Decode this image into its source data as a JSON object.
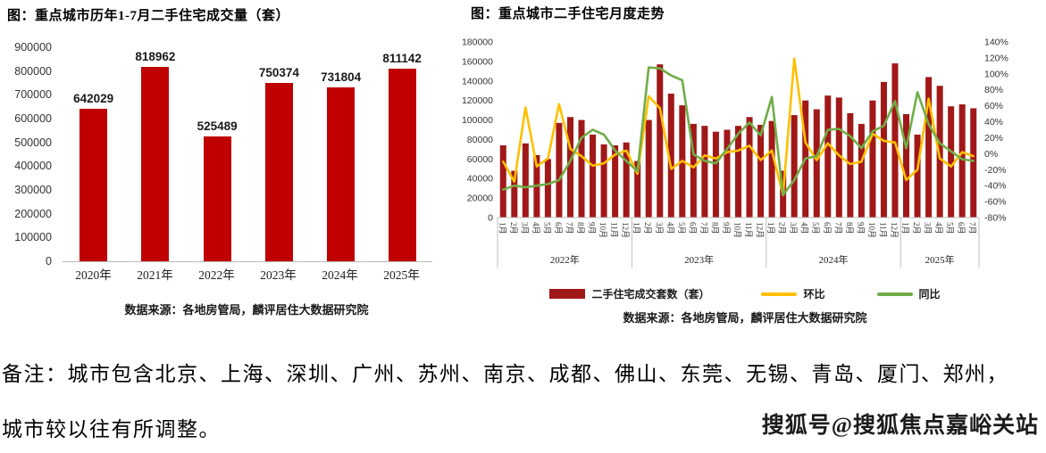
{
  "note": {
    "line1": "备注：城市包含北京、上海、深圳、广州、苏州、南京、成都、佛山、东莞、无锡、青岛、厦门、郑州，",
    "line2": "城市较以往有所调整。"
  },
  "watermark": "搜狐号@搜狐焦点嘉峪关站",
  "chart_data": [
    {
      "type": "bar",
      "title": "图：重点城市历年1-7月二手住宅成交量（套）",
      "categories": [
        "2020年",
        "2021年",
        "2022年",
        "2023年",
        "2024年",
        "2025年"
      ],
      "values": [
        642029,
        818962,
        525489,
        750374,
        731804,
        811142
      ],
      "ylim": [
        0,
        900000
      ],
      "ytick_step": 100000,
      "bar_color": "#C00000",
      "data_labels": true,
      "grid": false,
      "source": "数据来源：各地房管局，麟评居住大数据研究院"
    },
    {
      "type": "combo-bar-line",
      "title": "图：重点城市二手住宅月度走势",
      "year_groups": [
        {
          "label": "2022年",
          "months": 12
        },
        {
          "label": "2023年",
          "months": 12
        },
        {
          "label": "2024年",
          "months": 12
        },
        {
          "label": "2025年",
          "months": 7
        }
      ],
      "month_labels": [
        "1月",
        "2月",
        "3月",
        "4月",
        "5月",
        "6月",
        "7月",
        "8月",
        "9月",
        "10月",
        "11月",
        "12月",
        "1月",
        "2月",
        "3月",
        "4月",
        "5月",
        "6月",
        "7月",
        "8月",
        "9月",
        "10月",
        "11月",
        "12月",
        "1月",
        "2月",
        "3月",
        "4月",
        "5月",
        "6月",
        "7月",
        "8月",
        "9月",
        "10月",
        "11月",
        "12月",
        "1月",
        "2月",
        "3月",
        "4月",
        "5月",
        "6月",
        "7月"
      ],
      "left_axis": {
        "min": 0,
        "max": 180000,
        "step": 20000
      },
      "right_axis": {
        "min": -80,
        "max": 140,
        "step": 20,
        "suffix": "%"
      },
      "grid": false,
      "legend_position": "bottom",
      "source": "数据来源：各地房管局，麟评居住大数据研究院",
      "series": [
        {
          "name": "二手住宅成交套数（套）",
          "type": "bar",
          "axis": "left",
          "color": "#A11818",
          "values": [
            74000,
            48000,
            76000,
            64000,
            60000,
            97000,
            103000,
            100000,
            85000,
            75000,
            74000,
            77000,
            58000,
            100000,
            157000,
            127000,
            115000,
            96000,
            94000,
            88000,
            90000,
            94000,
            103000,
            95000,
            99000,
            48000,
            105000,
            120000,
            111000,
            125000,
            123000,
            107000,
            96000,
            120000,
            139000,
            158000,
            106000,
            85000,
            144000,
            135000,
            114000,
            116000,
            112000
          ]
        },
        {
          "name": "环比",
          "type": "line",
          "axis": "right",
          "color": "#FFC000",
          "values": [
            -10,
            -35,
            58,
            -16,
            -6,
            62,
            6,
            -3,
            -15,
            -12,
            -1,
            4,
            -25,
            72,
            57,
            -19,
            -9,
            -17,
            -2,
            -6,
            2,
            4,
            10,
            -8,
            4,
            -52,
            119,
            14,
            -8,
            13,
            -2,
            -13,
            -10,
            25,
            16,
            14,
            -33,
            -20,
            69,
            -6,
            -16,
            2,
            -3
          ]
        },
        {
          "name": "同比",
          "type": "line",
          "axis": "right",
          "color": "#70AD47",
          "values": [
            -45,
            -40,
            -42,
            -40,
            -38,
            -33,
            -9,
            20,
            30,
            24,
            4,
            -9,
            -22,
            108,
            107,
            98,
            92,
            -1,
            -9,
            -12,
            6,
            25,
            39,
            23,
            71,
            -52,
            -33,
            -6,
            -3,
            30,
            31,
            22,
            7,
            28,
            35,
            66,
            7,
            77,
            37,
            13,
            3,
            -7,
            -9
          ]
        }
      ]
    }
  ]
}
